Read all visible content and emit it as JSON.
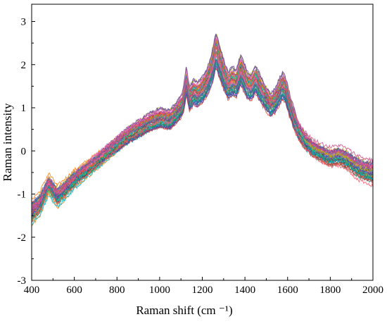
{
  "chart_data": {
    "type": "line",
    "title": "",
    "xlabel": "Raman shift (cm ⁻¹)",
    "ylabel": "Raman intensity",
    "xlim": [
      400,
      2000
    ],
    "ylim": [
      -3,
      3.4
    ],
    "x_ticks": [
      "400",
      "600",
      "800",
      "1000",
      "1200",
      "1400",
      "1600",
      "1800",
      "2000"
    ],
    "y_ticks": [
      "-3",
      "-2",
      "-1",
      "0",
      "1",
      "2",
      "3"
    ],
    "grid": false,
    "legend": "none",
    "series_count": 48,
    "representative_series": {
      "x": [
        400,
        440,
        480,
        520,
        560,
        600,
        650,
        700,
        750,
        800,
        850,
        900,
        950,
        1000,
        1050,
        1090,
        1110,
        1125,
        1140,
        1160,
        1180,
        1200,
        1220,
        1240,
        1255,
        1265,
        1280,
        1300,
        1320,
        1340,
        1360,
        1380,
        1395,
        1410,
        1430,
        1450,
        1465,
        1480,
        1500,
        1520,
        1540,
        1560,
        1575,
        1590,
        1610,
        1630,
        1650,
        1680,
        1720,
        1760,
        1800,
        1840,
        1880,
        1920,
        1960,
        2000
      ],
      "y": [
        -1.4,
        -1.2,
        -0.75,
        -1.05,
        -0.85,
        -0.65,
        -0.45,
        -0.25,
        -0.05,
        0.15,
        0.35,
        0.5,
        0.65,
        0.75,
        0.72,
        0.95,
        1.1,
        1.6,
        1.2,
        1.35,
        1.3,
        1.4,
        1.55,
        1.8,
        2.1,
        2.3,
        2.05,
        1.75,
        1.5,
        1.6,
        1.55,
        1.85,
        1.7,
        1.5,
        1.45,
        1.65,
        1.5,
        1.35,
        1.2,
        1.05,
        1.15,
        1.35,
        1.5,
        1.4,
        1.05,
        0.75,
        0.5,
        0.25,
        0.05,
        -0.05,
        -0.15,
        -0.1,
        -0.2,
        -0.35,
        -0.45,
        -0.5
      ]
    }
  }
}
